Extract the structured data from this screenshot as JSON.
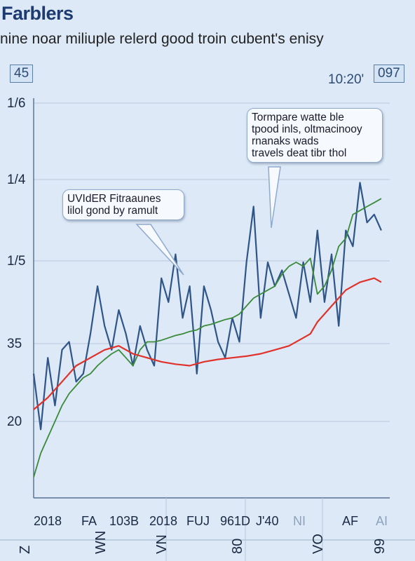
{
  "header": {
    "title": "Farblers",
    "subtitle": "nine noar miliuple relerd good troin cubent's enisy",
    "corner_left": "45",
    "time": "10:20'",
    "corner_right": "097"
  },
  "callouts": [
    {
      "lines": [
        "UVIdER Fitraaunes",
        "lilol gond by ramult"
      ]
    },
    {
      "lines": [
        "Tormpare watte ble",
        "tpood inls, oltmacinooy",
        "rnanaks wads",
        "travels deat tibr thol"
      ]
    }
  ],
  "colors": {
    "background": "#dde9f6",
    "blue_series": "#2f5588",
    "green_series": "#3a8a3a",
    "red_series": "#e0322a",
    "grid": "#b8c8dc"
  },
  "chart_data": {
    "type": "line",
    "title": "Farblers",
    "subtitle": "nine noar miliuple relerd good troin cubent's enisy",
    "y_tick_labels": [
      "1/6",
      "1/4",
      "1/5",
      "35",
      "20"
    ],
    "x_tick_labels": [
      "2018",
      "FA",
      "103B",
      "2018",
      "FUJ",
      "961D",
      "J'40",
      "NI",
      "AF",
      "AI"
    ],
    "x_tick_faint": [
      false,
      false,
      false,
      false,
      false,
      false,
      false,
      true,
      false,
      true
    ],
    "bottom_tick_labels": [
      "Z",
      "WN",
      "VN",
      "80",
      "VO",
      "99"
    ],
    "y_scale_note": "values expressed as position on the printed tick scale (0 = '20', 4 = '1/6')",
    "ylim": [
      -0.7,
      4.0
    ],
    "xlim": [
      0,
      100
    ],
    "grid": true,
    "series": [
      {
        "color": "blue",
        "x": [
          0,
          2,
          4,
          6,
          8,
          10,
          12,
          14,
          16,
          18,
          20,
          22,
          24,
          26,
          28,
          30,
          32,
          34,
          36,
          38,
          40,
          42,
          44,
          46,
          48,
          50,
          52,
          54,
          56,
          58,
          60,
          62,
          64,
          66,
          68,
          70,
          72,
          74,
          76,
          78,
          80,
          82,
          84,
          86,
          88,
          90,
          92,
          94,
          96,
          98
        ],
        "values": [
          0.6,
          -0.1,
          0.8,
          0.2,
          0.9,
          1.0,
          0.5,
          0.6,
          1.1,
          1.7,
          1.2,
          0.9,
          1.4,
          1.1,
          0.7,
          1.2,
          0.9,
          0.7,
          1.8,
          1.5,
          2.1,
          1.3,
          1.7,
          0.6,
          1.7,
          1.4,
          1.0,
          0.8,
          1.3,
          1.0,
          2.0,
          2.7,
          1.3,
          2.0,
          1.7,
          1.9,
          1.6,
          1.3,
          2.0,
          1.5,
          2.4,
          1.5,
          2.1,
          1.2,
          2.4,
          2.2,
          3.0,
          2.5,
          2.6,
          2.4
        ]
      },
      {
        "color": "green",
        "x": [
          0,
          2,
          4,
          6,
          8,
          10,
          12,
          14,
          16,
          18,
          20,
          22,
          24,
          26,
          28,
          30,
          32,
          34,
          36,
          38,
          40,
          42,
          44,
          46,
          48,
          50,
          52,
          54,
          56,
          58,
          60,
          62,
          64,
          66,
          68,
          70,
          72,
          74,
          76,
          78,
          80,
          82,
          84,
          86,
          88,
          90,
          92,
          94,
          96,
          98
        ],
        "values": [
          -0.7,
          -0.4,
          -0.2,
          0.0,
          0.2,
          0.35,
          0.45,
          0.55,
          0.6,
          0.7,
          0.78,
          0.85,
          0.9,
          0.8,
          0.7,
          0.9,
          1.0,
          1.0,
          1.02,
          1.05,
          1.08,
          1.1,
          1.13,
          1.15,
          1.2,
          1.22,
          1.25,
          1.28,
          1.3,
          1.35,
          1.45,
          1.55,
          1.6,
          1.65,
          1.7,
          1.85,
          1.95,
          2.0,
          1.95,
          2.05,
          1.6,
          1.7,
          1.9,
          2.2,
          2.3,
          2.6,
          2.65,
          2.7,
          2.75,
          2.8
        ]
      },
      {
        "color": "red",
        "x": [
          0,
          4,
          8,
          12,
          16,
          20,
          24,
          28,
          32,
          36,
          40,
          44,
          48,
          52,
          56,
          60,
          64,
          68,
          72,
          76,
          78,
          80,
          84,
          88,
          92,
          96,
          98
        ],
        "values": [
          0.15,
          0.3,
          0.5,
          0.7,
          0.8,
          0.9,
          0.95,
          0.85,
          0.8,
          0.75,
          0.72,
          0.7,
          0.75,
          0.78,
          0.8,
          0.82,
          0.85,
          0.9,
          0.95,
          1.05,
          1.1,
          1.25,
          1.45,
          1.65,
          1.75,
          1.8,
          1.75
        ]
      }
    ]
  }
}
